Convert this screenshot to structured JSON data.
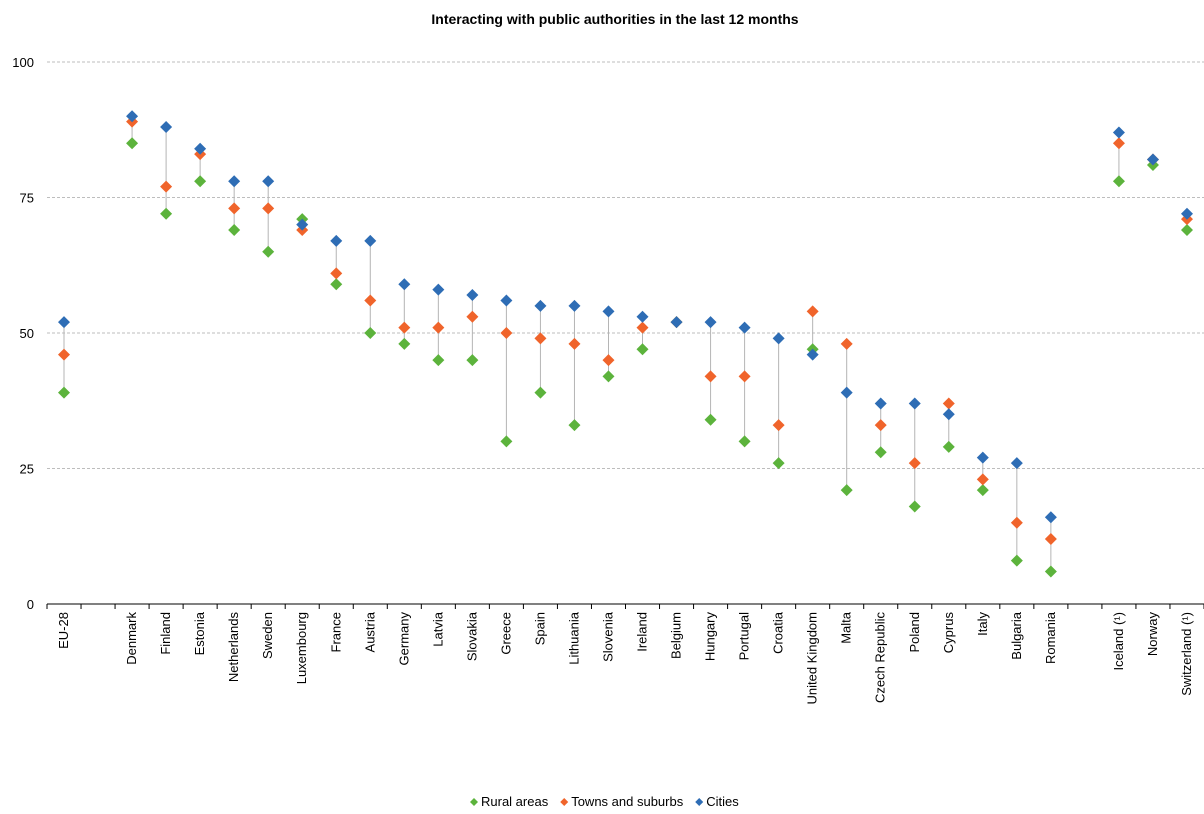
{
  "chart_data": {
    "type": "scatter",
    "title": "Interacting with public authorities in the last 12 months",
    "ylim": [
      0,
      100
    ],
    "yticks": [
      0,
      25,
      50,
      75,
      100
    ],
    "grid": true,
    "legend_position": "bottom",
    "categories": [
      "EU-28",
      "",
      "Denmark",
      "Finland",
      "Estonia",
      "Netherlands",
      "Sweden",
      "Luxembourg",
      "France",
      "Austria",
      "Germany",
      "Latvia",
      "Slovakia",
      "Greece",
      "Spain",
      "Lithuania",
      "Slovenia",
      "Ireland",
      "Belgium",
      "Hungary",
      "Portugal",
      "Croatia",
      "United Kingdom",
      "Malta",
      "Czech Republic",
      "Poland",
      "Cyprus",
      "Italy",
      "Bulgaria",
      "Romania",
      "",
      "Iceland (¹)",
      "Norway",
      "Switzerland (¹)"
    ],
    "series": [
      {
        "name": "Rural areas",
        "color": "#5cb33c",
        "values": [
          39,
          null,
          85,
          72,
          78,
          69,
          65,
          71,
          59,
          50,
          48,
          45,
          45,
          30,
          39,
          33,
          42,
          47,
          52,
          34,
          30,
          26,
          47,
          21,
          28,
          18,
          29,
          21,
          8,
          6,
          null,
          78,
          81,
          69
        ]
      },
      {
        "name": "Towns and suburbs",
        "color": "#f0642b",
        "values": [
          46,
          null,
          89,
          77,
          83,
          73,
          73,
          69,
          61,
          56,
          51,
          51,
          53,
          50,
          49,
          48,
          45,
          51,
          52,
          42,
          42,
          33,
          54,
          48,
          33,
          26,
          37,
          23,
          15,
          12,
          null,
          85,
          82,
          71
        ]
      },
      {
        "name": "Cities",
        "color": "#2e6db5",
        "values": [
          52,
          null,
          90,
          88,
          84,
          78,
          78,
          70,
          67,
          67,
          59,
          58,
          57,
          56,
          55,
          55,
          54,
          53,
          52,
          52,
          51,
          49,
          46,
          39,
          37,
          37,
          35,
          27,
          26,
          16,
          null,
          87,
          82,
          72
        ]
      }
    ]
  }
}
